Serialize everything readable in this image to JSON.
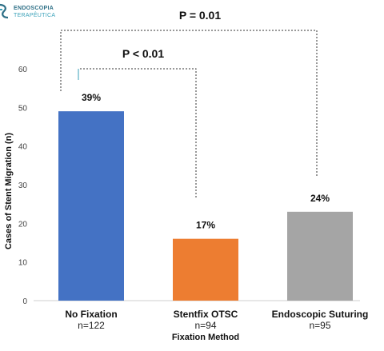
{
  "logo": {
    "line1": "ENDOSCOPIA",
    "line2": "TERAPÊUTICA"
  },
  "chart_data": {
    "type": "bar",
    "categories": [
      "No Fixation",
      "Stentfix OTSC",
      "Endoscopic Suturing"
    ],
    "category_counts": [
      "n=122",
      "n=94",
      "n=95"
    ],
    "values": [
      49,
      16,
      23
    ],
    "data_labels": [
      "39%",
      "17%",
      "24%"
    ],
    "colors": [
      "#4472c4",
      "#ed7d31",
      "#a5a5a5"
    ],
    "xlabel": "Fixation Method",
    "ylabel": "Cases of Stent Migration (n)",
    "ylim": [
      0,
      60
    ],
    "yticks": [
      0,
      10,
      20,
      30,
      40,
      50,
      60
    ],
    "grid": false,
    "annotations": [
      {
        "text": "P = 0.01",
        "from": "No Fixation",
        "to": "Endoscopic Suturing"
      },
      {
        "text": "P < 0.01",
        "from": "No Fixation",
        "to": "Stentfix OTSC"
      }
    ]
  }
}
